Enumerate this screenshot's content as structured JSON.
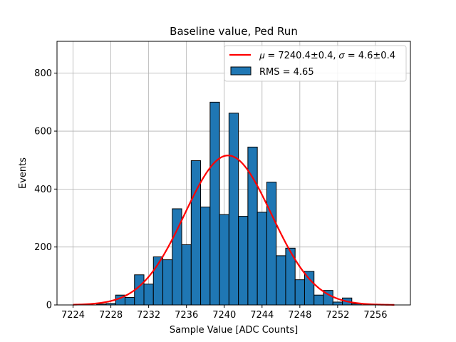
{
  "chart_data": {
    "type": "bar",
    "title": "Baseline value, Ped Run",
    "xlabel": "Sample Value [ADC Counts]",
    "ylabel": "Events",
    "xlim": [
      7222.3,
      7259.7
    ],
    "ylim": [
      0,
      910
    ],
    "grid": true,
    "legend_position": "top-right",
    "x_ticks": [
      7224,
      7228,
      7232,
      7236,
      7240,
      7244,
      7248,
      7252,
      7256
    ],
    "y_ticks": [
      0,
      200,
      400,
      600,
      800
    ],
    "bar_color": "#1f77b4",
    "fit_color": "#ff0000",
    "bin_width": 1,
    "bins": [
      {
        "x": 7227,
        "value": 3
      },
      {
        "x": 7228,
        "value": 5
      },
      {
        "x": 7229,
        "value": 34
      },
      {
        "x": 7230,
        "value": 26
      },
      {
        "x": 7231,
        "value": 104
      },
      {
        "x": 7232,
        "value": 72
      },
      {
        "x": 7233,
        "value": 166
      },
      {
        "x": 7234,
        "value": 156
      },
      {
        "x": 7235,
        "value": 332
      },
      {
        "x": 7236,
        "value": 208
      },
      {
        "x": 7237,
        "value": 498
      },
      {
        "x": 7238,
        "value": 338
      },
      {
        "x": 7239,
        "value": 700
      },
      {
        "x": 7240,
        "value": 312
      },
      {
        "x": 7241,
        "value": 662
      },
      {
        "x": 7242,
        "value": 306
      },
      {
        "x": 7243,
        "value": 545
      },
      {
        "x": 7244,
        "value": 320
      },
      {
        "x": 7245,
        "value": 424
      },
      {
        "x": 7246,
        "value": 170
      },
      {
        "x": 7247,
        "value": 196
      },
      {
        "x": 7248,
        "value": 87
      },
      {
        "x": 7249,
        "value": 116
      },
      {
        "x": 7250,
        "value": 34
      },
      {
        "x": 7251,
        "value": 50
      },
      {
        "x": 7252,
        "value": 10
      },
      {
        "x": 7253,
        "value": 24
      },
      {
        "x": 7254,
        "value": 4
      }
    ],
    "fit": {
      "mu": 7240.4,
      "sigma": 4.6,
      "amplitude": 516,
      "x_range": [
        7224,
        7258
      ]
    },
    "legend": {
      "fit_label": "𝜇 = 7240.4±0.4, 𝜎 = 4.6±0.4",
      "hist_label": "RMS = 4.65"
    }
  }
}
